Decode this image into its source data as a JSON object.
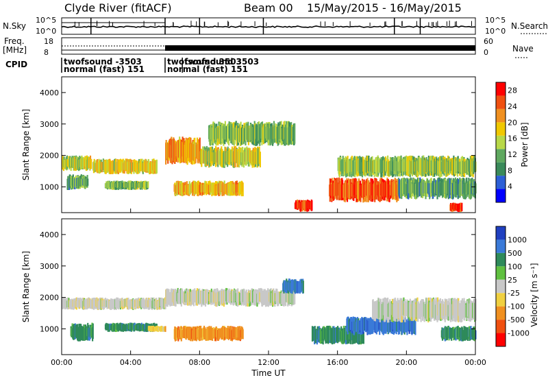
{
  "header": {
    "title": "Clyde River (fitACF)",
    "beam": "Beam 00",
    "dates": "15/May/2015 - 16/May/2015"
  },
  "top_panels": {
    "nsky_label": "N.Sky",
    "nsky_ticks": [
      "10^5",
      "10^0"
    ],
    "nsearch_label": "N.Search",
    "nsearch_ticks": [
      "10^5",
      "10^0"
    ],
    "freq_label": "Freq.",
    "freq_unit": "[MHz]",
    "freq_ticks": [
      "18",
      "8"
    ],
    "nave_label": "Nave",
    "nave_ticks": [
      "60",
      "0"
    ],
    "cpid_label": "CPID",
    "cpid_entries": [
      {
        "start_hour": 0.0,
        "line1": "twofsound -3503",
        "line2": "normal (fast) 151"
      },
      {
        "start_hour": 6.0,
        "line1": "twofsound 3503",
        "line2": "normal (fast) 151"
      },
      {
        "start_hour": 7.0,
        "line1": "twofsound 3503",
        "line2": ""
      }
    ]
  },
  "chart_data": [
    {
      "type": "heatmap",
      "panel": "power",
      "ylabel": "Slant Range [km]",
      "ylim": [
        180,
        4500
      ],
      "yticks": [
        1000,
        2000,
        3000,
        4000
      ],
      "xlim": [
        0,
        24
      ],
      "colorbar": {
        "label": "Power [dB]",
        "range": [
          0,
          30
        ],
        "ticks": [
          4,
          8,
          12,
          16,
          20,
          24,
          28
        ],
        "colors": [
          "#0000ff",
          "#2c5fd6",
          "#3a8a5a",
          "#5fa85f",
          "#b8d848",
          "#f0c800",
          "#f09020",
          "#f05010",
          "#ff0000"
        ]
      },
      "echo_regions": [
        {
          "t0": 0.0,
          "t1": 1.7,
          "r0": 1500,
          "r1": 2000,
          "level": 16
        },
        {
          "t0": 0.3,
          "t1": 1.5,
          "r0": 900,
          "r1": 1400,
          "level": 10
        },
        {
          "t0": 1.8,
          "t1": 5.5,
          "r0": 1400,
          "r1": 1900,
          "level": 18
        },
        {
          "t0": 2.5,
          "t1": 5.0,
          "r0": 900,
          "r1": 1200,
          "level": 12
        },
        {
          "t0": 6.0,
          "t1": 8.0,
          "r0": 1700,
          "r1": 2600,
          "level": 22
        },
        {
          "t0": 6.5,
          "t1": 10.5,
          "r0": 700,
          "r1": 1200,
          "level": 20
        },
        {
          "t0": 8.0,
          "t1": 11.5,
          "r0": 1600,
          "r1": 2300,
          "level": 16
        },
        {
          "t0": 8.5,
          "t1": 13.5,
          "r0": 2300,
          "r1": 3100,
          "level": 12
        },
        {
          "t0": 13.5,
          "t1": 14.5,
          "r0": 200,
          "r1": 600,
          "level": 28
        },
        {
          "t0": 15.5,
          "t1": 19.5,
          "r0": 500,
          "r1": 1300,
          "level": 26
        },
        {
          "t0": 16.0,
          "t1": 24.0,
          "r0": 1300,
          "r1": 2000,
          "level": 14
        },
        {
          "t0": 19.5,
          "t1": 24.0,
          "r0": 600,
          "r1": 1300,
          "level": 10
        },
        {
          "t0": 22.5,
          "t1": 23.2,
          "r0": 200,
          "r1": 500,
          "level": 28
        }
      ]
    },
    {
      "type": "heatmap",
      "panel": "velocity",
      "ylabel": "Slant Range [km]",
      "xlabel": "Time UT",
      "ylim": [
        180,
        4500
      ],
      "yticks": [
        1000,
        2000,
        3000,
        4000
      ],
      "xlim": [
        0,
        24
      ],
      "xticks": [
        "00:00",
        "04:00",
        "08:00",
        "12:00",
        "16:00",
        "20:00",
        "00:00"
      ],
      "colorbar": {
        "label": "Velocity [m s⁻¹]",
        "ticks": [
          "1000",
          "500",
          "100",
          "25",
          "-25",
          "-100",
          "-500",
          "-1000"
        ],
        "colors": [
          "#2040c0",
          "#3a7ad8",
          "#2e8a5a",
          "#60c040",
          "#c8c8c8",
          "#f0d040",
          "#f09020",
          "#f05010",
          "#ff0000"
        ]
      },
      "echo_regions": [
        {
          "t0": 0.0,
          "t1": 6.0,
          "r0": 1600,
          "r1": 2000,
          "vclass": "25"
        },
        {
          "t0": 0.5,
          "t1": 1.8,
          "r0": 600,
          "r1": 1200,
          "vclass": "100"
        },
        {
          "t0": 2.5,
          "t1": 5.5,
          "r0": 900,
          "r1": 1200,
          "vclass": "100"
        },
        {
          "t0": 5.0,
          "t1": 6.0,
          "r0": 900,
          "r1": 1100,
          "vclass": "-100"
        },
        {
          "t0": 6.5,
          "t1": 10.5,
          "r0": 600,
          "r1": 1100,
          "vclass": "-500"
        },
        {
          "t0": 6.0,
          "t1": 13.5,
          "r0": 1700,
          "r1": 2300,
          "vclass": "25"
        },
        {
          "t0": 12.8,
          "t1": 14.0,
          "r0": 2100,
          "r1": 2600,
          "vclass": "500"
        },
        {
          "t0": 14.5,
          "t1": 17.5,
          "r0": 500,
          "r1": 1100,
          "vclass": "100"
        },
        {
          "t0": 16.5,
          "t1": 20.5,
          "r0": 800,
          "r1": 1400,
          "vclass": "500"
        },
        {
          "t0": 18.0,
          "t1": 24.0,
          "r0": 1200,
          "r1": 2000,
          "vclass": "25"
        },
        {
          "t0": 22.0,
          "t1": 24.0,
          "r0": 600,
          "r1": 1100,
          "vclass": "100"
        }
      ]
    }
  ]
}
